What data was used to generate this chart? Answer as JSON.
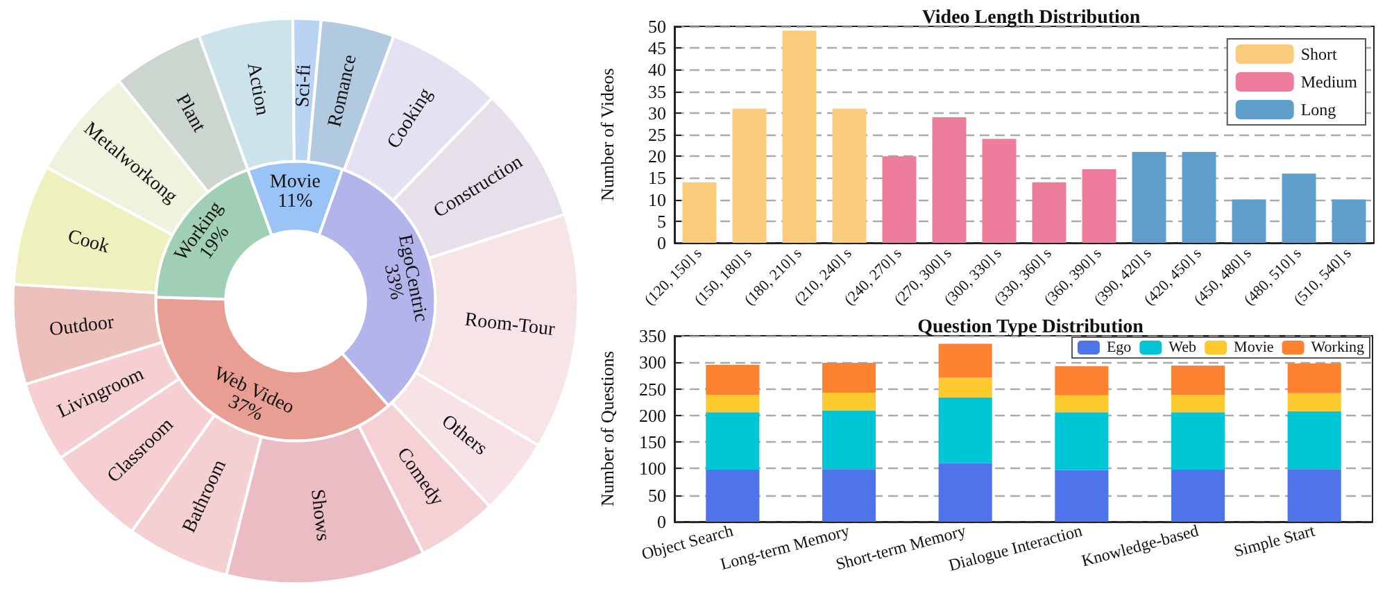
{
  "chart_data": [
    {
      "type": "donut",
      "categories": [
        "Movie",
        "EgoCentric",
        "Web Video",
        "Working"
      ],
      "values": [
        11,
        33,
        37,
        19
      ],
      "value_labels": [
        "11%",
        "33%",
        "37%",
        "19%"
      ],
      "colors": [
        "#99c4f5",
        "#b4b4ec",
        "#e99e93",
        "#a0cfb6"
      ]
    },
    {
      "type": "donut",
      "categories": [
        "Action",
        "Sci-fi",
        "Romance",
        "Cooking",
        "Construction",
        "Room-Tour",
        "Others",
        "Comedy",
        "Shows",
        "Bathroom",
        "Classroom",
        "Livingroom",
        "Outdoor",
        "Cook",
        "Metalworkong",
        "Plant"
      ],
      "values": [
        5.4,
        1.6,
        4.2,
        6.6,
        7.8,
        13.5,
        4.4,
        4.6,
        11.4,
        5.9,
        5.8,
        4.6,
        5.7,
        6.9,
        6.4,
        5.2
      ],
      "colors": [
        "#cce3ec",
        "#b9d3f3",
        "#b2cadf",
        "#e5e1f2",
        "#e5e0ea",
        "#f6e4e7",
        "#f7e3e5",
        "#f5d1d5",
        "#ebbcc4",
        "#f5d0d3",
        "#f5cfd2",
        "#f5cfd2",
        "#ecc0bb",
        "#eef1bd",
        "#eff2dc",
        "#ccd6cf"
      ]
    },
    {
      "type": "bar",
      "title": "Video Length Distribution",
      "ylabel": "Number of Videos",
      "categories": [
        "(120, 150] s",
        "(150, 180] s",
        "(180, 210] s",
        "(210, 240] s",
        "(240, 270] s",
        "(270, 300] s",
        "(300, 330] s",
        "(330, 360] s",
        "(360, 390] s",
        "(390, 420] s",
        "(420, 450] s",
        "(450, 480] s",
        "(480, 510] s",
        "(510, 540] s"
      ],
      "series": [
        {
          "name": "Short",
          "color": "#f9cb7a",
          "values": [
            14,
            31,
            49,
            31,
            null,
            null,
            null,
            null,
            null,
            null,
            null,
            null,
            null,
            null
          ]
        },
        {
          "name": "Medium",
          "color": "#ee7c9c",
          "values": [
            null,
            null,
            null,
            null,
            20,
            29,
            24,
            14,
            17,
            null,
            null,
            null,
            null,
            null
          ]
        },
        {
          "name": "Long",
          "color": "#5f9dcb",
          "values": [
            null,
            null,
            null,
            null,
            null,
            null,
            null,
            null,
            null,
            21,
            21,
            10,
            16,
            10
          ]
        }
      ],
      "ylim": [
        0,
        50
      ],
      "yticks": [
        0,
        5,
        10,
        15,
        20,
        25,
        30,
        35,
        40,
        45,
        50
      ],
      "grid": "y",
      "legend": "top right"
    },
    {
      "type": "bar",
      "title": "Question Type Distribution",
      "ylabel": "Number of Questions",
      "categories": [
        "Object Search",
        "Long-term Memory",
        "Short-term Memory",
        "Dialogue Interaction",
        "Knowledge-based",
        "Simple Start"
      ],
      "stacked": true,
      "series": [
        {
          "name": "Ego",
          "color": "#4f74ea",
          "values": [
            98,
            99,
            110,
            97,
            98,
            99
          ]
        },
        {
          "name": "Web",
          "color": "#00c5d5",
          "values": [
            108,
            110,
            124,
            109,
            108,
            109
          ]
        },
        {
          "name": "Movie",
          "color": "#fdca2d",
          "values": [
            33,
            34,
            37,
            32,
            33,
            34
          ]
        },
        {
          "name": "Working",
          "color": "#fd8230",
          "values": [
            56,
            56,
            64,
            55,
            55,
            56
          ]
        }
      ],
      "ylim": [
        0,
        350
      ],
      "yticks": [
        0,
        50,
        100,
        150,
        200,
        250,
        300,
        350
      ],
      "grid": "y",
      "legend": "top right"
    }
  ]
}
